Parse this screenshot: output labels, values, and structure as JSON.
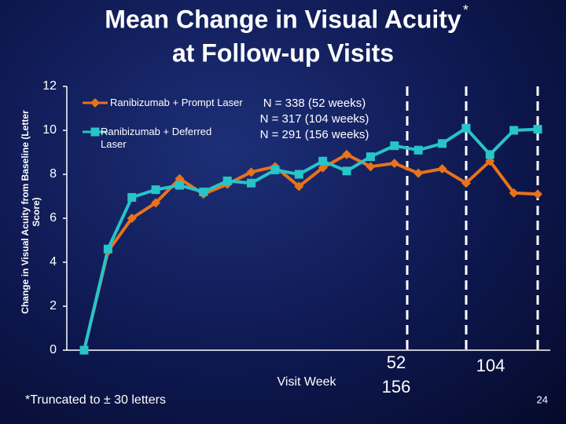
{
  "chart_data": {
    "type": "line",
    "title": [
      "Mean Change in Visual Acuity",
      "at Follow-up Visits"
    ],
    "title_mark": "*",
    "y_label": [
      "Change in Visual Acuity from Baseline (Letter",
      "Score)"
    ],
    "x_label": "Visit Week",
    "footnote": "*Truncated to ± 30 letters",
    "page_number": "24",
    "n_notes": [
      "N = 338 (52 weeks)",
      "N = 317 (104 weeks)",
      "N = 291 (156 weeks)"
    ],
    "week_labels": [
      "52",
      "156",
      "104"
    ],
    "categories": [
      null,
      null,
      null,
      null,
      null,
      null,
      null,
      null,
      null,
      null,
      null,
      null,
      null,
      null,
      null,
      null,
      null,
      null,
      null,
      null
    ],
    "series": [
      {
        "name": "Ranibizumab + Prompt Laser",
        "color": "#e8731a",
        "marker": "diamond",
        "values": [
          0,
          4.5,
          6.0,
          6.7,
          7.8,
          7.1,
          7.55,
          8.1,
          8.35,
          7.45,
          8.3,
          8.9,
          8.35,
          8.5,
          8.05,
          8.25,
          7.6,
          8.6,
          7.15,
          7.1
        ]
      },
      {
        "name": "Ranibizumab + Deferred Laser",
        "color": "#27c4c8",
        "marker": "square",
        "values": [
          0,
          4.6,
          6.95,
          7.3,
          7.5,
          7.2,
          7.7,
          7.6,
          8.2,
          8.0,
          8.6,
          8.15,
          8.8,
          9.3,
          9.1,
          9.4,
          10.1,
          8.9,
          10.0,
          10.05
        ]
      }
    ],
    "ylim": [
      0,
      12
    ],
    "yticks": [
      0,
      2,
      4,
      6,
      8,
      10,
      12
    ]
  }
}
